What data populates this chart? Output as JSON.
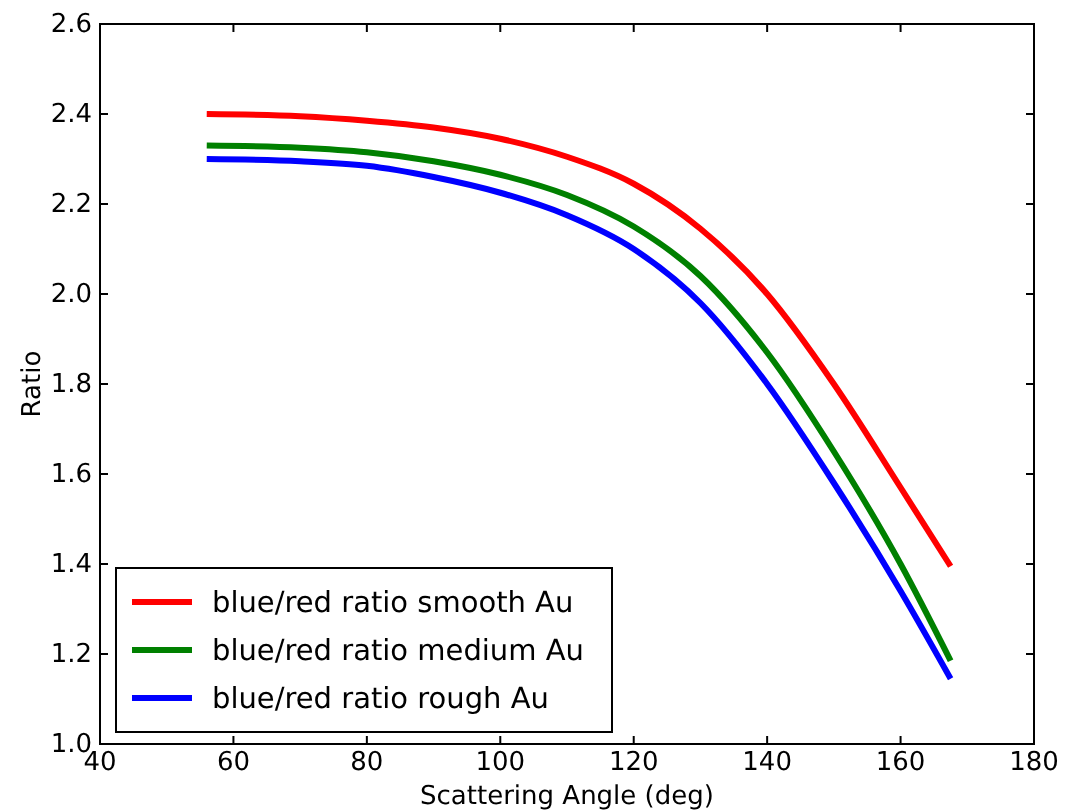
{
  "chart_data": {
    "type": "line",
    "xlabel": "Scattering Angle (deg)",
    "ylabel": "Ratio",
    "xlim": [
      40,
      180
    ],
    "xticks": [
      40,
      60,
      80,
      100,
      120,
      140,
      160,
      180
    ],
    "ylim": [
      1.0,
      2.6
    ],
    "yticks": [
      {
        "value": 1.0,
        "label": "1.0"
      },
      {
        "value": 1.2,
        "label": "1.2"
      },
      {
        "value": 1.4,
        "label": "1.4"
      },
      {
        "value": 1.6,
        "label": "1.6"
      },
      {
        "value": 1.8,
        "label": "1.8"
      },
      {
        "value": 2.0,
        "label": "2.0"
      },
      {
        "value": 2.2,
        "label": "2.2"
      },
      {
        "value": 2.4,
        "label": "2.4"
      },
      {
        "value": 2.6,
        "label": "2.6"
      }
    ],
    "x": [
      56,
      70,
      80,
      90,
      100,
      110,
      120,
      130,
      140,
      150,
      160,
      167.5
    ],
    "legend": "bottom left",
    "grid": false,
    "line_style": "solid",
    "marker": "none",
    "series": [
      {
        "name": "blue/red ratio smooth Au",
        "color": "#ff0000",
        "values": [
          2.4,
          2.395,
          2.385,
          2.37,
          2.345,
          2.305,
          2.245,
          2.145,
          2.0,
          1.8,
          1.57,
          1.395
        ]
      },
      {
        "name": "blue/red ratio medium Au",
        "color": "#008000",
        "values": [
          2.33,
          2.325,
          2.315,
          2.295,
          2.265,
          2.22,
          2.15,
          2.04,
          1.87,
          1.65,
          1.4,
          1.185
        ]
      },
      {
        "name": "blue/red ratio rough Au",
        "color": "#0000ff",
        "values": [
          2.3,
          2.295,
          2.285,
          2.26,
          2.225,
          2.175,
          2.1,
          1.98,
          1.8,
          1.58,
          1.34,
          1.145
        ]
      }
    ]
  }
}
